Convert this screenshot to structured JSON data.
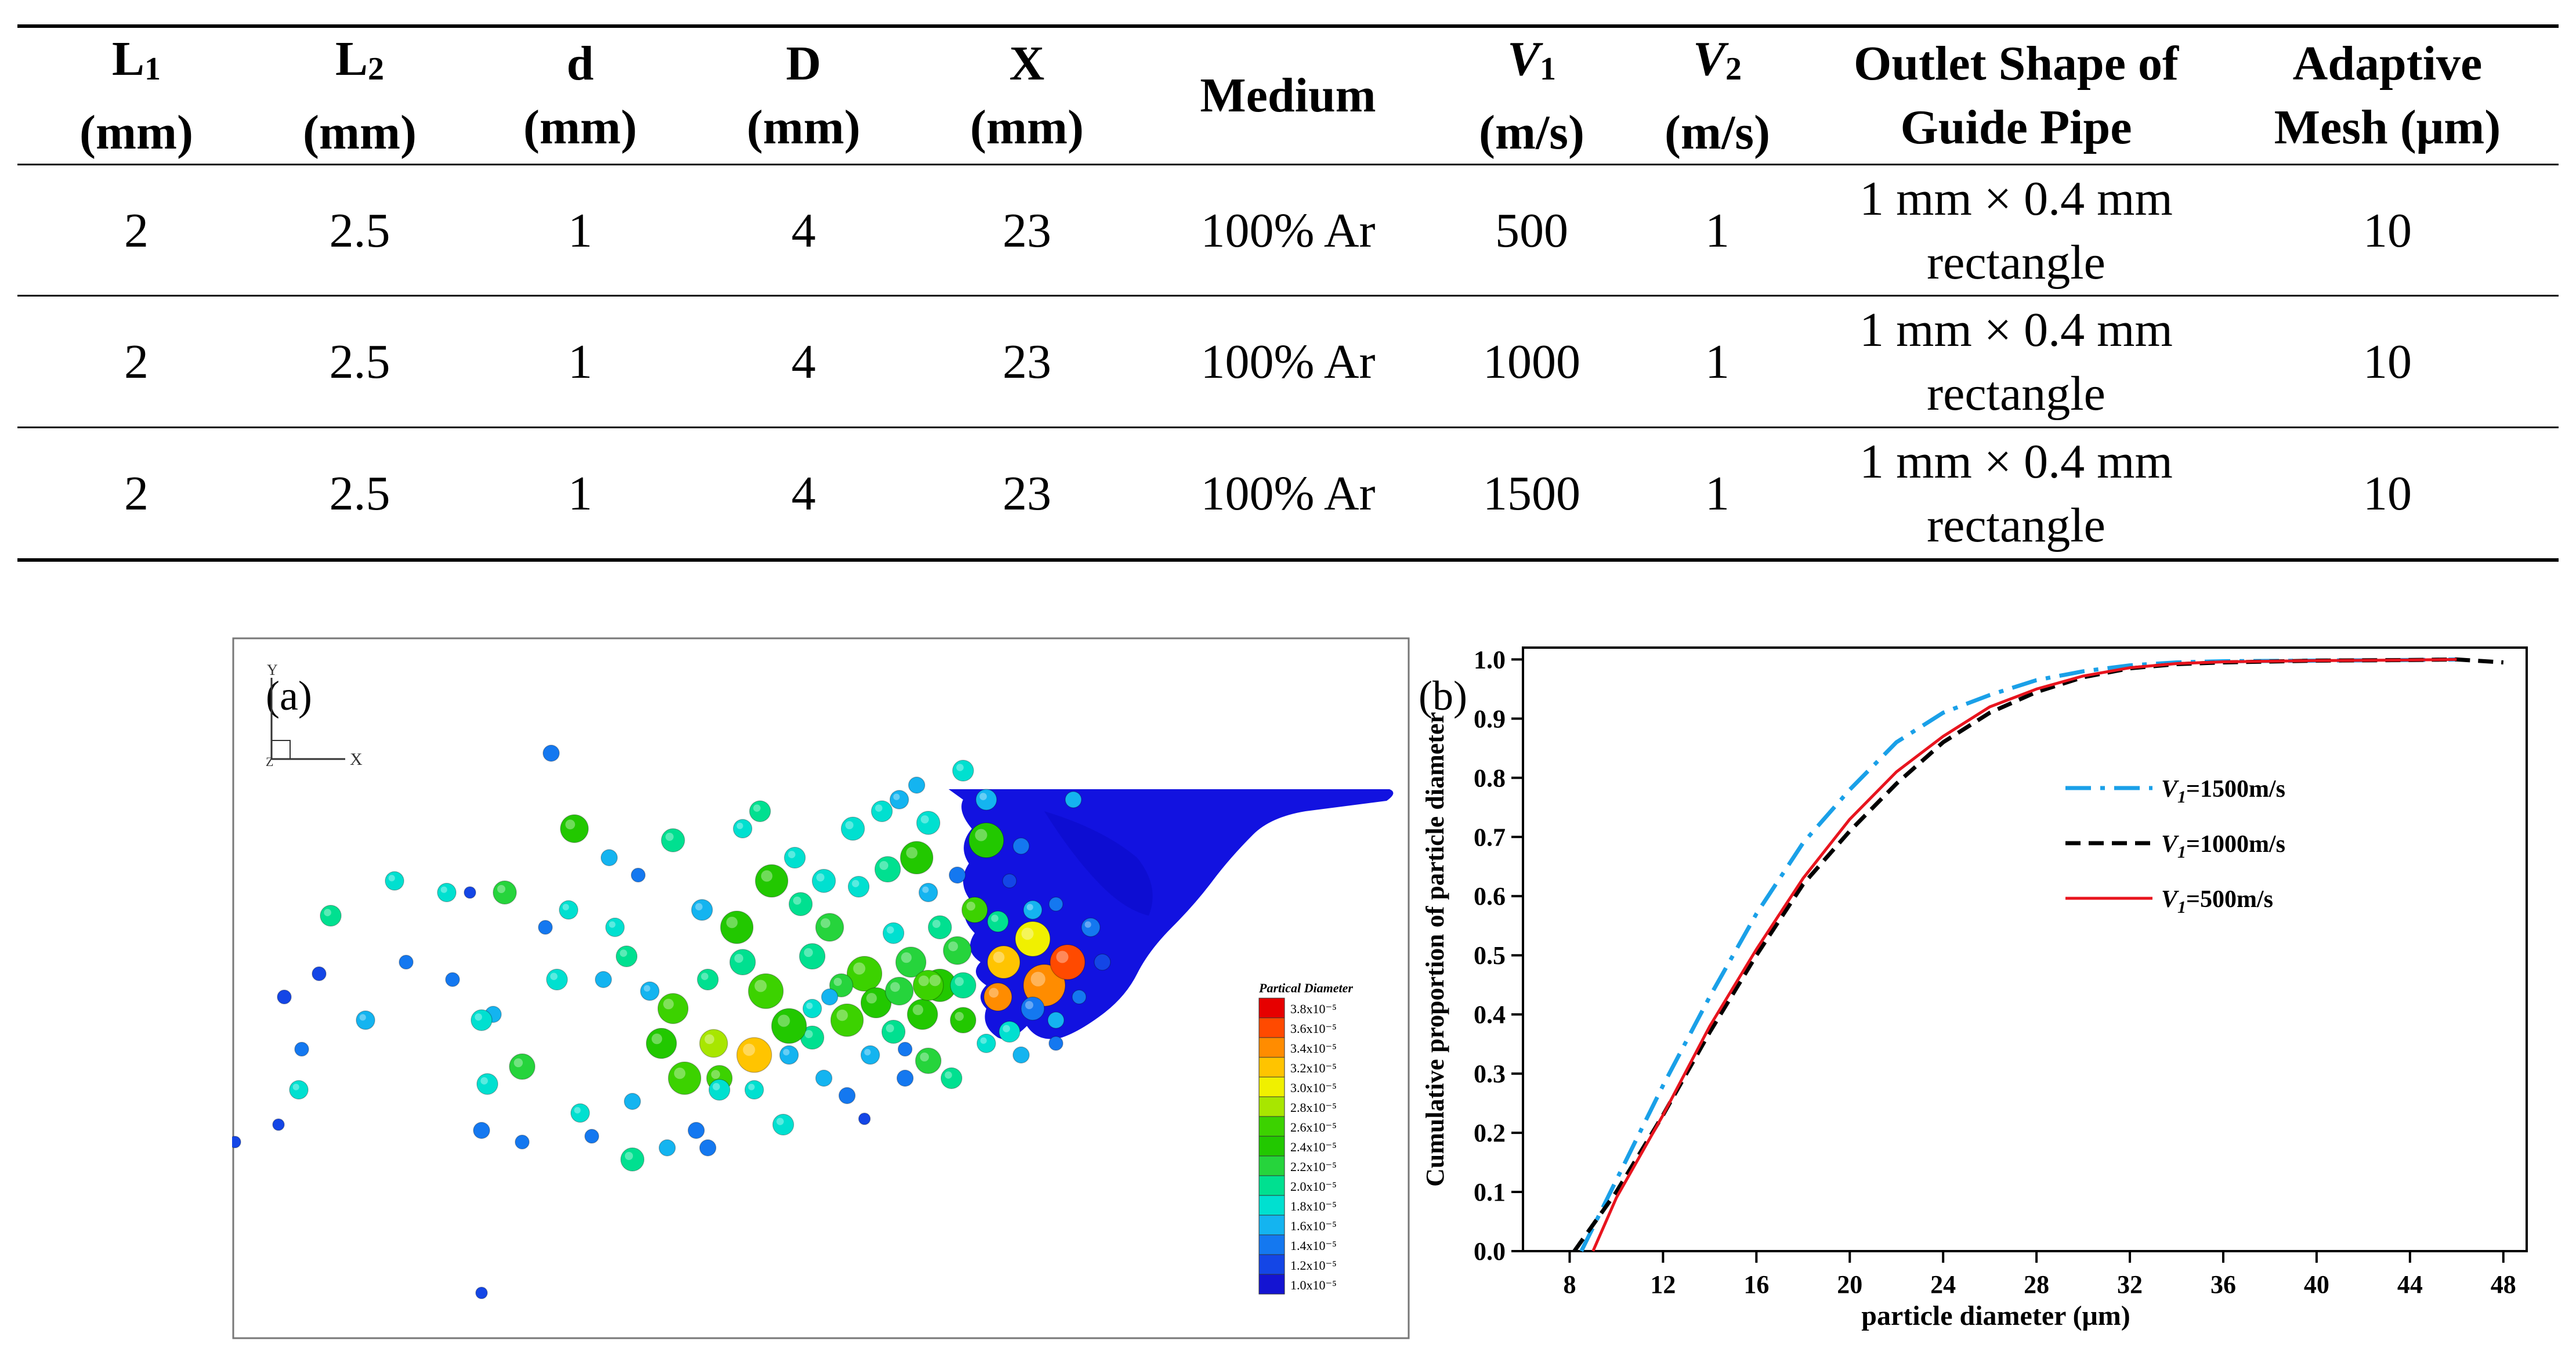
{
  "table": {
    "headers": [
      {
        "main": "L",
        "sub": "1",
        "unit": "(mm)"
      },
      {
        "main": "L",
        "sub": "2",
        "unit": "(mm)"
      },
      {
        "main": "d",
        "sub": "",
        "unit": "(mm)"
      },
      {
        "main": "D",
        "sub": "",
        "unit": "(mm)"
      },
      {
        "main": "X",
        "sub": "",
        "unit": "(mm)"
      },
      {
        "main": "Medium",
        "sub": "",
        "unit": ""
      },
      {
        "main": "V",
        "sub": "1",
        "unit": "(m/s)"
      },
      {
        "main": "V",
        "sub": "2",
        "unit": "(m/s)"
      },
      {
        "main": "Outlet Shape of",
        "sub": "",
        "unit": "Guide Pipe"
      },
      {
        "main": "Adaptive",
        "sub": "",
        "unit": "Mesh (μm)"
      }
    ],
    "rows": [
      [
        "2",
        "2.5",
        "1",
        "4",
        "23",
        "100% Ar",
        "500",
        "1",
        "1 mm × 0.4 mm",
        "rectangle",
        "10"
      ],
      [
        "2",
        "2.5",
        "1",
        "4",
        "23",
        "100% Ar",
        "1000",
        "1",
        "1 mm × 0.4 mm",
        "rectangle",
        "10"
      ],
      [
        "2",
        "2.5",
        "1",
        "4",
        "23",
        "100% Ar",
        "1500",
        "1",
        "1 mm × 0.4 mm",
        "rectangle",
        "10"
      ]
    ]
  },
  "figure_a": {
    "panel_label": "(a)",
    "axis_y_label": "Y",
    "axis_x_label": "X",
    "axis_z_label": "Z",
    "legend_title": "Partical Diameter",
    "legend_labels": [
      "3.8x10⁻⁵",
      "3.6x10⁻⁵",
      "3.4x10⁻⁵",
      "3.2x10⁻⁵",
      "3.0x10⁻⁵",
      "2.8x10⁻⁵",
      "2.6x10⁻⁵",
      "2.4x10⁻⁵",
      "2.2x10⁻⁵",
      "2.0x10⁻⁵",
      "1.8x10⁻⁵",
      "1.6x10⁻⁵",
      "1.4x10⁻⁵",
      "1.2x10⁻⁵",
      "1.0x10⁻⁵"
    ],
    "legend_colors": [
      "#e60000",
      "#ff4a00",
      "#ff8c00",
      "#ffc400",
      "#f0f000",
      "#a8e600",
      "#3cd200",
      "#22c800",
      "#26d43c",
      "#00e090",
      "#00e0d0",
      "#14b4f0",
      "#1478f0",
      "#1446e6",
      "#1414d2"
    ]
  },
  "chart_data": {
    "type": "line",
    "panel_label": "(b)",
    "xlabel": "particle diameter (μm)",
    "ylabel": "Cumulative proportion of particle diameter",
    "xlim": [
      6,
      49
    ],
    "ylim": [
      0.0,
      1.02
    ],
    "xticks": [
      8,
      12,
      16,
      20,
      24,
      28,
      32,
      36,
      40,
      44,
      48
    ],
    "yticks": [
      0.0,
      0.1,
      0.2,
      0.3,
      0.4,
      0.5,
      0.6,
      0.7,
      0.8,
      0.9,
      1.0
    ],
    "legend_position": "center-right",
    "series": [
      {
        "name": "V1=1500m/s",
        "legend_base": "V",
        "legend_sub": "1",
        "legend_rest": "=1500m/s",
        "color": "#1aa0e8",
        "dash": "dashdot",
        "x": [
          8.5,
          10,
          12,
          14,
          16,
          18,
          20,
          22,
          24,
          26,
          28,
          30,
          32,
          34,
          36,
          40,
          44,
          46
        ],
        "y": [
          0.0,
          0.12,
          0.28,
          0.43,
          0.57,
          0.69,
          0.78,
          0.86,
          0.91,
          0.94,
          0.965,
          0.98,
          0.99,
          0.995,
          0.997,
          0.998,
          0.999,
          1.0
        ]
      },
      {
        "name": "V1=1000m/s",
        "legend_base": "V",
        "legend_sub": "1",
        "legend_rest": "=1000m/s",
        "color": "#000000",
        "dash": "dash",
        "x": [
          8.2,
          10,
          12,
          14,
          16,
          18,
          20,
          22,
          24,
          26,
          28,
          30,
          32,
          34,
          36,
          40,
          44,
          46,
          48
        ],
        "y": [
          0.0,
          0.1,
          0.23,
          0.37,
          0.5,
          0.62,
          0.71,
          0.79,
          0.86,
          0.91,
          0.945,
          0.97,
          0.985,
          0.992,
          0.995,
          0.998,
          0.999,
          1.0,
          0.995
        ]
      },
      {
        "name": "V1=500m/s",
        "legend_base": "V",
        "legend_sub": "1",
        "legend_rest": "=500m/s",
        "color": "#e8141e",
        "dash": "solid",
        "x": [
          9.0,
          10,
          12,
          14,
          16,
          18,
          20,
          22,
          24,
          26,
          28,
          30,
          32,
          34,
          36,
          40,
          44,
          46
        ],
        "y": [
          0.0,
          0.09,
          0.23,
          0.38,
          0.51,
          0.63,
          0.73,
          0.81,
          0.87,
          0.92,
          0.95,
          0.972,
          0.986,
          0.993,
          0.996,
          0.998,
          0.999,
          1.0
        ]
      }
    ]
  }
}
